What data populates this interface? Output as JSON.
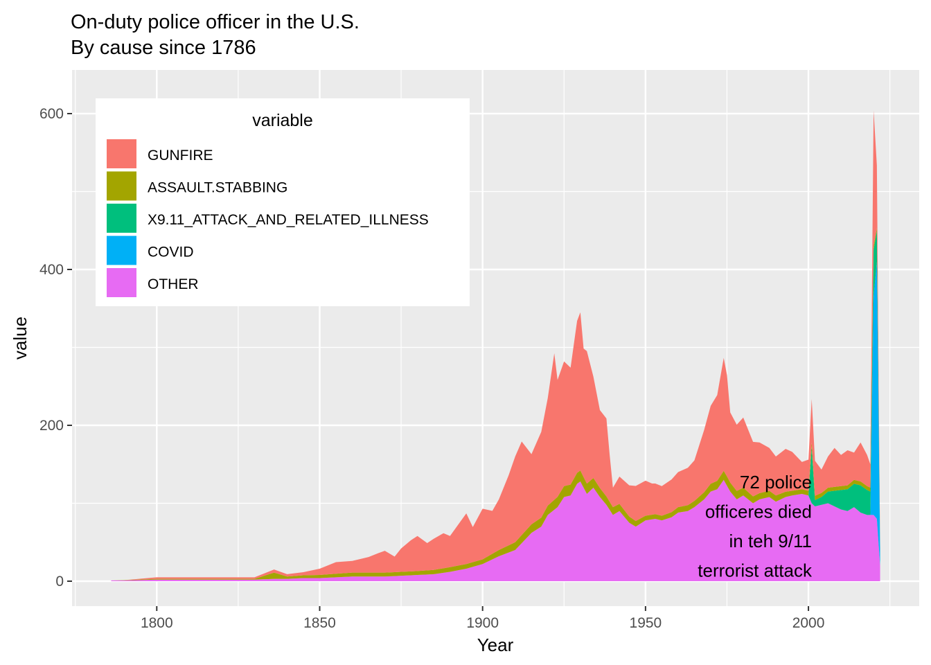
{
  "title_lines": [
    "On-duty police officer in the U.S.",
    "By cause since 1786"
  ],
  "chart_data": {
    "type": "area",
    "stacked": true,
    "title": "On-duty police officer in the U.S.",
    "subtitle": "By cause since 1786",
    "xlabel": "Year",
    "ylabel": "value",
    "xlim": [
      1774,
      2034
    ],
    "ylim": [
      -32,
      656
    ],
    "x_ticks": [
      1800,
      1850,
      1900,
      1950,
      2000
    ],
    "y_ticks": [
      0,
      200,
      400,
      600
    ],
    "grid": true,
    "legend": {
      "title": "variable",
      "placement": "top-left",
      "entries": [
        "GUNFIRE",
        "ASSAULT.STABBING",
        "X9.11_ATTACK_AND_RELATED_ILLNESS",
        "COVID",
        "OTHER"
      ]
    },
    "stack_order_bottom_to_top": [
      "OTHER",
      "COVID",
      "X9.11_ATTACK_AND_RELATED_ILLNESS",
      "ASSAULT.STABBING",
      "GUNFIRE"
    ],
    "series": [
      {
        "name": "OTHER",
        "color": "#E76BF3",
        "points": [
          [
            1786,
            1
          ],
          [
            1790,
            1
          ],
          [
            1800,
            2
          ],
          [
            1810,
            2
          ],
          [
            1820,
            2
          ],
          [
            1830,
            2
          ],
          [
            1836,
            3
          ],
          [
            1840,
            3
          ],
          [
            1845,
            4
          ],
          [
            1850,
            4
          ],
          [
            1855,
            5
          ],
          [
            1860,
            6
          ],
          [
            1865,
            6
          ],
          [
            1870,
            6
          ],
          [
            1875,
            7
          ],
          [
            1880,
            8
          ],
          [
            1885,
            9
          ],
          [
            1890,
            12
          ],
          [
            1895,
            16
          ],
          [
            1900,
            22
          ],
          [
            1905,
            32
          ],
          [
            1910,
            40
          ],
          [
            1915,
            62
          ],
          [
            1918,
            70
          ],
          [
            1920,
            85
          ],
          [
            1923,
            95
          ],
          [
            1925,
            108
          ],
          [
            1927,
            110
          ],
          [
            1929,
            125
          ],
          [
            1930,
            128
          ],
          [
            1932,
            112
          ],
          [
            1934,
            120
          ],
          [
            1936,
            108
          ],
          [
            1938,
            98
          ],
          [
            1940,
            85
          ],
          [
            1942,
            90
          ],
          [
            1945,
            75
          ],
          [
            1947,
            70
          ],
          [
            1950,
            78
          ],
          [
            1953,
            80
          ],
          [
            1955,
            78
          ],
          [
            1958,
            82
          ],
          [
            1960,
            88
          ],
          [
            1963,
            90
          ],
          [
            1965,
            95
          ],
          [
            1968,
            105
          ],
          [
            1970,
            115
          ],
          [
            1972,
            118
          ],
          [
            1974,
            130
          ],
          [
            1976,
            115
          ],
          [
            1978,
            105
          ],
          [
            1980,
            110
          ],
          [
            1983,
            100
          ],
          [
            1985,
            105
          ],
          [
            1988,
            108
          ],
          [
            1990,
            102
          ],
          [
            1993,
            108
          ],
          [
            1995,
            110
          ],
          [
            1998,
            112
          ],
          [
            2000,
            110
          ],
          [
            2001,
            100
          ],
          [
            2002,
            96
          ],
          [
            2004,
            98
          ],
          [
            2006,
            100
          ],
          [
            2008,
            96
          ],
          [
            2010,
            92
          ],
          [
            2012,
            90
          ],
          [
            2014,
            95
          ],
          [
            2016,
            88
          ],
          [
            2018,
            85
          ],
          [
            2019,
            85
          ],
          [
            2020,
            85
          ],
          [
            2021,
            80
          ],
          [
            2022,
            20
          ]
        ]
      },
      {
        "name": "COVID",
        "color": "#00B0F6",
        "points": [
          [
            1786,
            0
          ],
          [
            2019,
            0
          ],
          [
            2020,
            280
          ],
          [
            2021,
            330
          ],
          [
            2022,
            20
          ]
        ]
      },
      {
        "name": "X9.11_ATTACK_AND_RELATED_ILLNESS",
        "color": "#00BF7D",
        "points": [
          [
            1786,
            0
          ],
          [
            2000,
            0
          ],
          [
            2001,
            72
          ],
          [
            2002,
            8
          ],
          [
            2004,
            10
          ],
          [
            2006,
            15
          ],
          [
            2008,
            20
          ],
          [
            2010,
            25
          ],
          [
            2012,
            28
          ],
          [
            2014,
            30
          ],
          [
            2016,
            35
          ],
          [
            2018,
            32
          ],
          [
            2019,
            30
          ],
          [
            2020,
            60
          ],
          [
            2021,
            40
          ],
          [
            2022,
            0
          ]
        ]
      },
      {
        "name": "ASSAULT.STABBING",
        "color": "#A3A500",
        "points": [
          [
            1786,
            0
          ],
          [
            1800,
            1
          ],
          [
            1830,
            1
          ],
          [
            1836,
            8
          ],
          [
            1840,
            3
          ],
          [
            1850,
            4
          ],
          [
            1860,
            5
          ],
          [
            1870,
            5
          ],
          [
            1880,
            5
          ],
          [
            1890,
            6
          ],
          [
            1900,
            6
          ],
          [
            1910,
            10
          ],
          [
            1920,
            12
          ],
          [
            1925,
            14
          ],
          [
            1930,
            14
          ],
          [
            1935,
            12
          ],
          [
            1940,
            10
          ],
          [
            1945,
            8
          ],
          [
            1950,
            6
          ],
          [
            1955,
            6
          ],
          [
            1960,
            7
          ],
          [
            1965,
            8
          ],
          [
            1970,
            10
          ],
          [
            1975,
            12
          ],
          [
            1980,
            10
          ],
          [
            1985,
            8
          ],
          [
            1990,
            8
          ],
          [
            1995,
            6
          ],
          [
            2000,
            6
          ],
          [
            2005,
            5
          ],
          [
            2010,
            5
          ],
          [
            2015,
            5
          ],
          [
            2020,
            5
          ],
          [
            2022,
            2
          ]
        ]
      },
      {
        "name": "GUNFIRE",
        "color": "#F8766D",
        "points": [
          [
            1786,
            0
          ],
          [
            1790,
            0
          ],
          [
            1800,
            2
          ],
          [
            1810,
            2
          ],
          [
            1820,
            2
          ],
          [
            1830,
            2
          ],
          [
            1836,
            4
          ],
          [
            1840,
            3
          ],
          [
            1845,
            4
          ],
          [
            1850,
            8
          ],
          [
            1855,
            15
          ],
          [
            1860,
            15
          ],
          [
            1865,
            20
          ],
          [
            1868,
            25
          ],
          [
            1870,
            28
          ],
          [
            1873,
            20
          ],
          [
            1875,
            30
          ],
          [
            1878,
            40
          ],
          [
            1880,
            45
          ],
          [
            1883,
            35
          ],
          [
            1885,
            40
          ],
          [
            1888,
            45
          ],
          [
            1890,
            40
          ],
          [
            1893,
            55
          ],
          [
            1895,
            65
          ],
          [
            1897,
            45
          ],
          [
            1900,
            65
          ],
          [
            1903,
            55
          ],
          [
            1905,
            65
          ],
          [
            1908,
            90
          ],
          [
            1910,
            110
          ],
          [
            1912,
            120
          ],
          [
            1915,
            90
          ],
          [
            1918,
            110
          ],
          [
            1920,
            138
          ],
          [
            1922,
            188
          ],
          [
            1923,
            150
          ],
          [
            1925,
            160
          ],
          [
            1927,
            150
          ],
          [
            1929,
            195
          ],
          [
            1930,
            203
          ],
          [
            1931,
            165
          ],
          [
            1932,
            170
          ],
          [
            1934,
            130
          ],
          [
            1936,
            100
          ],
          [
            1938,
            100
          ],
          [
            1939,
            60
          ],
          [
            1940,
            25
          ],
          [
            1942,
            35
          ],
          [
            1945,
            40
          ],
          [
            1947,
            45
          ],
          [
            1950,
            45
          ],
          [
            1952,
            40
          ],
          [
            1955,
            38
          ],
          [
            1958,
            42
          ],
          [
            1960,
            45
          ],
          [
            1963,
            48
          ],
          [
            1965,
            52
          ],
          [
            1968,
            80
          ],
          [
            1970,
            100
          ],
          [
            1972,
            110
          ],
          [
            1974,
            145
          ],
          [
            1975,
            130
          ],
          [
            1976,
            90
          ],
          [
            1978,
            85
          ],
          [
            1980,
            90
          ],
          [
            1983,
            70
          ],
          [
            1985,
            65
          ],
          [
            1988,
            55
          ],
          [
            1990,
            50
          ],
          [
            1993,
            55
          ],
          [
            1995,
            50
          ],
          [
            1998,
            35
          ],
          [
            2000,
            40
          ],
          [
            2001,
            56
          ],
          [
            2002,
            45
          ],
          [
            2004,
            30
          ],
          [
            2006,
            40
          ],
          [
            2008,
            50
          ],
          [
            2010,
            40
          ],
          [
            2012,
            45
          ],
          [
            2014,
            35
          ],
          [
            2016,
            50
          ],
          [
            2018,
            40
          ],
          [
            2019,
            30
          ],
          [
            2020,
            174
          ],
          [
            2021,
            80
          ],
          [
            2022,
            0
          ]
        ]
      }
    ],
    "annotation": {
      "lines": [
        "72 police",
        "officeres died",
        "in teh 9/11",
        "terrorist attack"
      ],
      "anchor": "right"
    }
  }
}
